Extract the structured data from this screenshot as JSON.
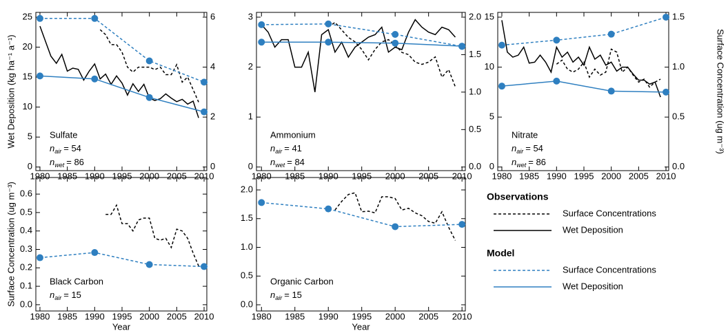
{
  "chart_data": [
    {
      "type": "line",
      "ylabel": "Wet Deposition (kg ha⁻¹ a⁻¹)",
      "label": "Sulfate",
      "counts": [
        {
          "symbol": "n",
          "subscript": "air",
          "text": "= 54"
        },
        {
          "symbol": "n",
          "subscript": "wet",
          "text": "= 86"
        }
      ],
      "xlim": [
        1979.25,
        2010.5
      ],
      "xticks": [
        1980,
        1985,
        1990,
        1995,
        2000,
        2005,
        2010
      ],
      "ylim": [
        -0.6,
        25.8
      ],
      "yticks": [
        0,
        5,
        10,
        15,
        20,
        25
      ],
      "y2lim": [
        -0.144,
        6.192
      ],
      "y2ticks": [
        0,
        2,
        4,
        6
      ],
      "series": [
        {
          "group": "Observations",
          "name": "Surface Concentrations",
          "color": "#000000",
          "dashed": true,
          "marker": false,
          "axis": "y2",
          "x": [
            1991,
            1992,
            1993,
            1994,
            1995,
            1996,
            1997,
            1998,
            1999,
            2000,
            2001,
            2002,
            2003,
            2004,
            2005,
            2006,
            2007,
            2008,
            2009
          ],
          "values": [
            5.5,
            5.3,
            4.9,
            4.9,
            4.6,
            4.0,
            3.8,
            4.0,
            4.0,
            4.0,
            3.9,
            4.0,
            3.7,
            3.7,
            4.1,
            3.4,
            3.6,
            3.1,
            2.6
          ]
        },
        {
          "group": "Observations",
          "name": "Wet Deposition",
          "color": "#000000",
          "dashed": false,
          "marker": false,
          "axis": "y",
          "x": [
            1980,
            1981,
            1982,
            1983,
            1984,
            1985,
            1986,
            1987,
            1988,
            1989,
            1990,
            1991,
            1992,
            1993,
            1994,
            1995,
            1996,
            1997,
            1998,
            1999,
            2000,
            2001,
            2002,
            2003,
            2004,
            2005,
            2006,
            2007,
            2008,
            2009
          ],
          "values": [
            23.5,
            21,
            18.5,
            17.3,
            18.8,
            16,
            16.5,
            16.3,
            14.5,
            16,
            17.2,
            14.7,
            15.5,
            13.8,
            15.2,
            14,
            12,
            13.9,
            12.6,
            13.8,
            11.5,
            11.1,
            11.4,
            12.2,
            11.5,
            10.9,
            11.3,
            10.5,
            11,
            8.2
          ]
        },
        {
          "group": "Model",
          "name": "Surface Concentrations",
          "color": "#2e7fc0",
          "dashed": true,
          "marker": true,
          "axis": "y2",
          "x": [
            1980,
            1990,
            2000,
            2010
          ],
          "values": [
            5.95,
            5.95,
            4.25,
            3.4
          ]
        },
        {
          "group": "Model",
          "name": "Wet Deposition",
          "color": "#2e7fc0",
          "dashed": false,
          "marker": true,
          "axis": "y",
          "x": [
            1980,
            1990,
            2000,
            2010
          ],
          "values": [
            15.2,
            14.7,
            11.6,
            9.2
          ]
        }
      ]
    },
    {
      "type": "line",
      "label": "Ammonium",
      "counts": [
        {
          "symbol": "n",
          "subscript": "air",
          "text": "= 41"
        },
        {
          "symbol": "n",
          "subscript": "wet",
          "text": "= 84"
        }
      ],
      "xlim": [
        1979.25,
        2010.5
      ],
      "xticks": [
        1980,
        1985,
        1990,
        1995,
        2000,
        2005,
        2010
      ],
      "ylim": [
        -0.072,
        3.096
      ],
      "yticks": [
        0,
        1,
        2,
        3
      ],
      "y2lim": [
        -0.048,
        2.064
      ],
      "y2ticks": [
        {
          "value": 0,
          "label": "0.0"
        },
        0.5,
        {
          "value": 1,
          "label": "1.0"
        },
        1.5,
        {
          "value": 2,
          "label": "2.0"
        }
      ],
      "series": [
        {
          "group": "Observations",
          "name": "Surface Concentrations",
          "color": "#000000",
          "dashed": true,
          "marker": false,
          "axis": "y2",
          "x": [
            1990,
            1991,
            1992,
            1993,
            1994,
            1995,
            1996,
            1997,
            1998,
            1999,
            2000,
            2001,
            2002,
            2003,
            2004,
            2005,
            2006,
            2007,
            2008,
            2009
          ],
          "values": [
            1.87,
            1.93,
            1.83,
            1.73,
            1.67,
            1.57,
            1.43,
            1.57,
            1.67,
            1.7,
            1.63,
            1.53,
            1.5,
            1.4,
            1.37,
            1.4,
            1.47,
            1.2,
            1.3,
            1.07
          ]
        },
        {
          "group": "Observations",
          "name": "Wet Deposition",
          "color": "#000000",
          "dashed": false,
          "marker": false,
          "axis": "y",
          "x": [
            1980,
            1981,
            1982,
            1983,
            1984,
            1985,
            1986,
            1987,
            1988,
            1989,
            1990,
            1991,
            1992,
            1993,
            1994,
            1995,
            1996,
            1997,
            1998,
            1999,
            2000,
            2001,
            2002,
            2003,
            2004,
            2005,
            2006,
            2007,
            2008,
            2009
          ],
          "values": [
            2.85,
            2.7,
            2.4,
            2.55,
            2.55,
            2.0,
            2.0,
            2.3,
            1.5,
            2.65,
            2.75,
            2.3,
            2.5,
            2.2,
            2.4,
            2.5,
            2.6,
            2.65,
            2.8,
            2.3,
            2.4,
            2.35,
            2.7,
            2.95,
            2.8,
            2.7,
            2.65,
            2.8,
            2.75,
            2.6
          ]
        },
        {
          "group": "Model",
          "name": "Surface Concentrations",
          "color": "#2e7fc0",
          "dashed": true,
          "marker": true,
          "axis": "y2",
          "x": [
            1980,
            1990,
            2000,
            2010
          ],
          "values": [
            1.9,
            1.91,
            1.77,
            1.61
          ]
        },
        {
          "group": "Model",
          "name": "Wet Deposition",
          "color": "#2e7fc0",
          "dashed": false,
          "marker": true,
          "axis": "y",
          "x": [
            1980,
            1990,
            2000,
            2010
          ],
          "values": [
            2.5,
            2.5,
            2.48,
            2.42
          ]
        }
      ]
    },
    {
      "type": "line",
      "y2label": "Surface Concentration (ug m⁻³)",
      "label": "Nitrate",
      "counts": [
        {
          "symbol": "n",
          "subscript": "air",
          "text": "= 54"
        },
        {
          "symbol": "n",
          "subscript": "wet",
          "text": "= 86"
        }
      ],
      "xlim": [
        1979.25,
        2010.5
      ],
      "xticks": [
        1980,
        1985,
        1990,
        1995,
        2000,
        2005,
        2010
      ],
      "ylim": [
        -0.36,
        15.48
      ],
      "yticks": [
        0,
        5,
        10,
        15
      ],
      "y2lim": [
        -0.036,
        1.548
      ],
      "y2ticks": [
        {
          "value": 0,
          "label": "0.0"
        },
        0.5,
        {
          "value": 1,
          "label": "1.0"
        },
        1.5
      ],
      "series": [
        {
          "group": "Observations",
          "name": "Surface Concentrations",
          "color": "#000000",
          "dashed": true,
          "marker": false,
          "axis": "y2",
          "x": [
            1990,
            1991,
            1992,
            1993,
            1994,
            1995,
            1996,
            1997,
            1998,
            1999,
            2000,
            2001,
            2002,
            2003,
            2004,
            2005,
            2006,
            2007,
            2008,
            2009
          ],
          "values": [
            1.03,
            1.07,
            0.98,
            0.95,
            0.98,
            1.05,
            0.9,
            0.98,
            0.92,
            0.95,
            1.18,
            1.15,
            0.95,
            1.0,
            0.92,
            0.85,
            0.88,
            0.8,
            0.85,
            0.88
          ]
        },
        {
          "group": "Observations",
          "name": "Wet Deposition",
          "color": "#000000",
          "dashed": false,
          "marker": false,
          "axis": "y",
          "x": [
            1980,
            1981,
            1982,
            1983,
            1984,
            1985,
            1986,
            1987,
            1988,
            1989,
            1990,
            1991,
            1992,
            1993,
            1994,
            1995,
            1996,
            1997,
            1998,
            1999,
            2000,
            2001,
            2002,
            2003,
            2004,
            2005,
            2006,
            2007,
            2008,
            2009
          ],
          "values": [
            14.7,
            11.5,
            11.0,
            11.2,
            12.0,
            10.4,
            10.5,
            11.2,
            10.5,
            9.5,
            12.0,
            11.0,
            11.5,
            10.5,
            11.0,
            10.2,
            12.0,
            10.8,
            11.2,
            10.2,
            10.5,
            9.6,
            10.0,
            10.0,
            9.3,
            8.7,
            8.7,
            8.3,
            8.5,
            7.0
          ]
        },
        {
          "group": "Model",
          "name": "Surface Concentrations",
          "color": "#2e7fc0",
          "dashed": true,
          "marker": true,
          "axis": "y2",
          "x": [
            1980,
            1990,
            2000,
            2010
          ],
          "values": [
            1.22,
            1.27,
            1.33,
            1.5
          ]
        },
        {
          "group": "Model",
          "name": "Wet Deposition",
          "color": "#2e7fc0",
          "dashed": false,
          "marker": true,
          "axis": "y",
          "x": [
            1980,
            1990,
            2000,
            2010
          ],
          "values": [
            8.1,
            8.6,
            7.6,
            7.5
          ]
        }
      ]
    },
    {
      "type": "line",
      "ylabel": "Surface Concentration (ug m⁻³)",
      "xlabel": "Year",
      "label": "Black Carbon",
      "counts": [
        {
          "symbol": "n",
          "subscript": "air",
          "text": "= 15"
        }
      ],
      "xlim": [
        1979.25,
        2010.5
      ],
      "xticks": [
        1980,
        1985,
        1990,
        1995,
        2000,
        2005,
        2010
      ],
      "ylim": [
        -0.034,
        0.69
      ],
      "yticks": [
        {
          "value": 0,
          "label": "0.0"
        },
        0.1,
        0.2,
        0.3,
        0.4,
        0.5,
        0.6
      ],
      "series": [
        {
          "group": "Observations",
          "name": "Surface Concentrations",
          "color": "#000000",
          "dashed": true,
          "marker": false,
          "axis": "y",
          "x": [
            1992,
            1993,
            1994,
            1995,
            1996,
            1997,
            1998,
            1999,
            2000,
            2001,
            2002,
            2003,
            2004,
            2005,
            2006,
            2007,
            2008,
            2009
          ],
          "values": [
            0.49,
            0.49,
            0.54,
            0.44,
            0.44,
            0.4,
            0.46,
            0.47,
            0.47,
            0.36,
            0.35,
            0.36,
            0.31,
            0.41,
            0.4,
            0.36,
            0.28,
            0.21
          ]
        },
        {
          "group": "Model",
          "name": "Surface Concentrations",
          "color": "#2e7fc0",
          "dashed": true,
          "marker": true,
          "axis": "y",
          "x": [
            1980,
            1990,
            2000,
            2010
          ],
          "values": [
            0.255,
            0.283,
            0.218,
            0.207
          ]
        }
      ]
    },
    {
      "type": "line",
      "xlabel": "Year",
      "label": "Organic Carbon",
      "counts": [
        {
          "symbol": "n",
          "subscript": "air",
          "text": "= 15"
        }
      ],
      "xlim": [
        1979.25,
        2010.5
      ],
      "xticks": [
        1980,
        1985,
        1990,
        1995,
        2000,
        2005,
        2010
      ],
      "ylim": [
        -0.108,
        2.216
      ],
      "yticks": [
        {
          "value": 0,
          "label": "0.0"
        },
        0.5,
        {
          "value": 1,
          "label": "1.0"
        },
        1.5,
        {
          "value": 2,
          "label": "2.0"
        }
      ],
      "series": [
        {
          "group": "Observations",
          "name": "Surface Concentrations",
          "color": "#000000",
          "dashed": true,
          "marker": false,
          "axis": "y",
          "x": [
            1991,
            1992,
            1993,
            1994,
            1995,
            1996,
            1997,
            1998,
            1999,
            2000,
            2001,
            2002,
            2003,
            2004,
            2005,
            2006,
            2007,
            2008,
            2009
          ],
          "values": [
            1.65,
            1.8,
            1.92,
            1.95,
            1.62,
            1.63,
            1.6,
            1.88,
            1.88,
            1.85,
            1.65,
            1.68,
            1.6,
            1.55,
            1.45,
            1.42,
            1.62,
            1.35,
            1.12
          ]
        },
        {
          "group": "Model",
          "name": "Surface Concentrations",
          "color": "#2e7fc0",
          "dashed": true,
          "marker": true,
          "axis": "y",
          "x": [
            1980,
            1990,
            2000,
            2010
          ],
          "values": [
            1.78,
            1.67,
            1.36,
            1.4
          ]
        }
      ]
    }
  ]
}
